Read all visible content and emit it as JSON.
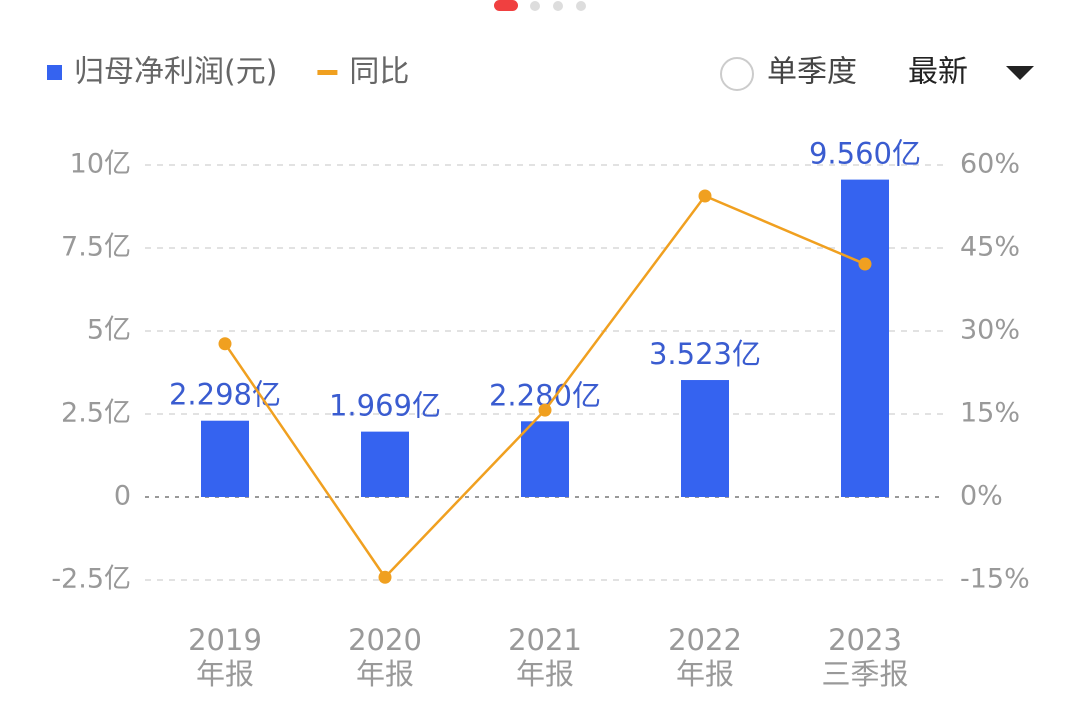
{
  "chart_data": {
    "type": "bar_line",
    "categories": [
      [
        "2019",
        "年报"
      ],
      [
        "2020",
        "年报"
      ],
      [
        "2021",
        "年报"
      ],
      [
        "2022",
        "年报"
      ],
      [
        "2023",
        "三季报"
      ]
    ],
    "series": [
      {
        "name": "归母净利润(元)",
        "type": "bar",
        "color": "#3563f0",
        "values": [
          2.298,
          1.969,
          2.28,
          3.523,
          9.56
        ],
        "value_labels": [
          "2.298亿",
          "1.969亿",
          "2.280亿",
          "3.523亿",
          "9.560亿"
        ]
      },
      {
        "name": "同比",
        "type": "line",
        "axis": "y2",
        "color": "#f0a020",
        "values": [
          27.7,
          -14.5,
          15.7,
          54.4,
          42.1
        ]
      }
    ],
    "ylim": [
      -2.5,
      10
    ],
    "yticks": [
      {
        "value": -2.5,
        "label": "-2.5亿"
      },
      0,
      {
        "value": 2.5,
        "label": "2.5亿"
      },
      {
        "value": 5,
        "label": "5亿"
      },
      {
        "value": 7.5,
        "label": "7.5亿"
      },
      {
        "value": 10,
        "label": "10亿"
      }
    ],
    "y2lim": [
      -15,
      60
    ],
    "y2ticks": [
      {
        "value": -15,
        "label": "-15%"
      },
      {
        "value": 0,
        "label": "0%"
      },
      {
        "value": 15,
        "label": "15%"
      },
      {
        "value": 30,
        "label": "30%"
      },
      {
        "value": 45,
        "label": "45%"
      },
      {
        "value": 60,
        "label": "60%"
      }
    ],
    "grid": true
  },
  "controls": {
    "quarter_toggle": "单季度",
    "period_select": "最新"
  }
}
